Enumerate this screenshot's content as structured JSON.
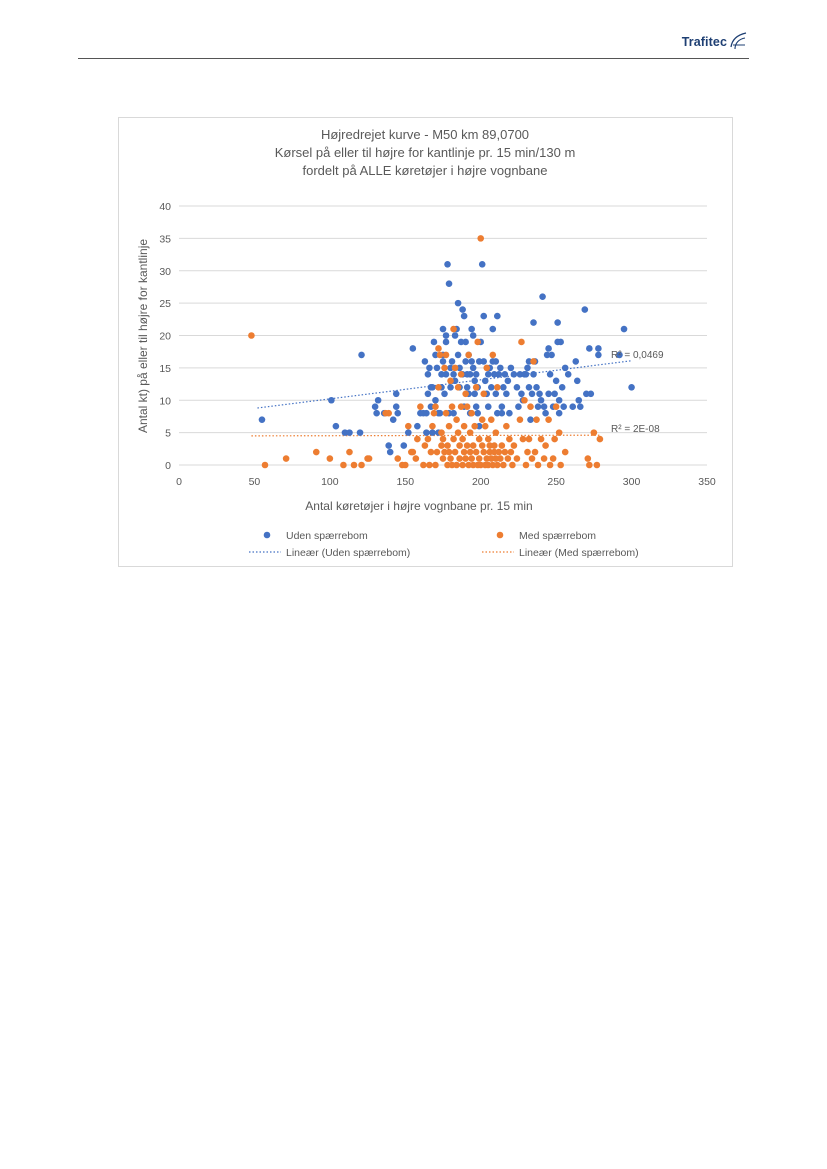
{
  "header": {
    "brand": "Trafitec",
    "brand_icon": "trafitec-logo-icon",
    "brand_color": "#1e3f73"
  },
  "chart_data": {
    "type": "scatter",
    "title": [
      "Højredrejet kurve - M50 km 89,0700",
      "Kørsel på eller til højre for kantlinje pr. 15 min/130 m",
      "fordelt på ALLE køretøjer i højre vognbane"
    ],
    "xlabel": "Antal køretøjer i højre vognbane pr. 15 min",
    "ylabel": "Antal kt) på eller til højre for kantlinje",
    "xlim": [
      0,
      350
    ],
    "ylim": [
      0,
      40
    ],
    "x_ticks": [
      "0",
      "50",
      "100",
      "150",
      "200",
      "250",
      "300",
      "350"
    ],
    "y_ticks": [
      "0",
      "5",
      "10",
      "15",
      "20",
      "25",
      "30",
      "35",
      "40"
    ],
    "grid": "horizontal",
    "legend_position": "bottom",
    "series": [
      {
        "name": "Uden spærrebom",
        "color": "#4472c4",
        "marker": "circle",
        "points": [
          [
            55,
            7
          ],
          [
            101,
            10
          ],
          [
            104,
            6
          ],
          [
            110,
            5
          ],
          [
            113,
            5
          ],
          [
            120,
            5
          ],
          [
            121,
            17
          ],
          [
            130,
            9
          ],
          [
            131,
            8
          ],
          [
            132,
            10
          ],
          [
            136,
            8
          ],
          [
            139,
            3
          ],
          [
            140,
            2
          ],
          [
            142,
            7
          ],
          [
            144,
            11
          ],
          [
            144,
            9
          ],
          [
            145,
            8
          ],
          [
            149,
            3
          ],
          [
            152,
            5
          ],
          [
            155,
            18
          ],
          [
            158,
            6
          ],
          [
            160,
            8
          ],
          [
            162,
            8
          ],
          [
            163,
            16
          ],
          [
            164,
            8
          ],
          [
            164,
            5
          ],
          [
            165,
            11
          ],
          [
            165,
            14
          ],
          [
            166,
            15
          ],
          [
            167,
            9
          ],
          [
            167,
            12
          ],
          [
            168,
            12
          ],
          [
            168,
            5
          ],
          [
            169,
            19
          ],
          [
            170,
            10
          ],
          [
            170,
            17
          ],
          [
            171,
            15
          ],
          [
            172,
            8
          ],
          [
            172,
            5
          ],
          [
            173,
            8
          ],
          [
            174,
            14
          ],
          [
            174,
            12
          ],
          [
            175,
            21
          ],
          [
            175,
            16
          ],
          [
            175,
            17
          ],
          [
            176,
            11
          ],
          [
            177,
            14
          ],
          [
            177,
            20
          ],
          [
            177,
            19
          ],
          [
            178,
            31
          ],
          [
            179,
            28
          ],
          [
            179,
            8
          ],
          [
            180,
            12
          ],
          [
            180,
            15
          ],
          [
            181,
            16
          ],
          [
            182,
            14
          ],
          [
            182,
            8
          ],
          [
            183,
            20
          ],
          [
            183,
            13
          ],
          [
            184,
            21
          ],
          [
            185,
            25
          ],
          [
            185,
            17
          ],
          [
            186,
            12
          ],
          [
            186,
            15
          ],
          [
            187,
            19
          ],
          [
            188,
            24
          ],
          [
            188,
            14
          ],
          [
            189,
            23
          ],
          [
            189,
            9
          ],
          [
            190,
            19
          ],
          [
            190,
            16
          ],
          [
            191,
            12
          ],
          [
            191,
            14
          ],
          [
            192,
            17
          ],
          [
            192,
            11
          ],
          [
            193,
            14
          ],
          [
            193,
            8
          ],
          [
            194,
            21
          ],
          [
            194,
            16
          ],
          [
            195,
            20
          ],
          [
            195,
            15
          ],
          [
            196,
            13
          ],
          [
            196,
            11
          ],
          [
            197,
            9
          ],
          [
            197,
            14
          ],
          [
            198,
            12
          ],
          [
            198,
            8
          ],
          [
            199,
            16
          ],
          [
            199,
            6
          ],
          [
            200,
            19
          ],
          [
            201,
            31
          ],
          [
            202,
            23
          ],
          [
            202,
            16
          ],
          [
            203,
            13
          ],
          [
            204,
            11
          ],
          [
            205,
            9
          ],
          [
            205,
            14
          ],
          [
            206,
            15
          ],
          [
            207,
            12
          ],
          [
            208,
            21
          ],
          [
            208,
            16
          ],
          [
            209,
            14
          ],
          [
            210,
            16
          ],
          [
            210,
            11
          ],
          [
            211,
            23
          ],
          [
            211,
            8
          ],
          [
            212,
            14
          ],
          [
            213,
            15
          ],
          [
            214,
            9
          ],
          [
            214,
            8
          ],
          [
            215,
            12
          ],
          [
            216,
            14
          ],
          [
            217,
            11
          ],
          [
            218,
            13
          ],
          [
            219,
            8
          ],
          [
            220,
            15
          ],
          [
            222,
            14
          ],
          [
            224,
            12
          ],
          [
            225,
            9
          ],
          [
            226,
            14
          ],
          [
            227,
            11
          ],
          [
            228,
            10
          ],
          [
            229,
            14
          ],
          [
            230,
            14
          ],
          [
            231,
            15
          ],
          [
            232,
            16
          ],
          [
            232,
            12
          ],
          [
            233,
            7
          ],
          [
            234,
            11
          ],
          [
            235,
            22
          ],
          [
            235,
            14
          ],
          [
            236,
            16
          ],
          [
            237,
            12
          ],
          [
            238,
            9
          ],
          [
            239,
            11
          ],
          [
            240,
            10
          ],
          [
            241,
            26
          ],
          [
            242,
            9
          ],
          [
            243,
            8
          ],
          [
            244,
            17
          ],
          [
            245,
            18
          ],
          [
            245,
            11
          ],
          [
            246,
            14
          ],
          [
            247,
            17
          ],
          [
            248,
            9
          ],
          [
            249,
            11
          ],
          [
            250,
            13
          ],
          [
            251,
            22
          ],
          [
            251,
            19
          ],
          [
            252,
            10
          ],
          [
            252,
            8
          ],
          [
            253,
            19
          ],
          [
            254,
            12
          ],
          [
            255,
            9
          ],
          [
            256,
            15
          ],
          [
            258,
            14
          ],
          [
            261,
            9
          ],
          [
            263,
            16
          ],
          [
            264,
            13
          ],
          [
            265,
            10
          ],
          [
            266,
            9
          ],
          [
            269,
            24
          ],
          [
            270,
            11
          ],
          [
            272,
            18
          ],
          [
            273,
            11
          ],
          [
            278,
            17
          ],
          [
            278,
            18
          ],
          [
            292,
            17
          ],
          [
            295,
            21
          ],
          [
            300,
            12
          ]
        ],
        "trendline": {
          "name": "Lineær (Uden spærrebom)",
          "style": "dotted",
          "x": [
            52,
            300
          ],
          "y": [
            8.8,
            16.1
          ],
          "r2_label": "R² = 0,0469"
        }
      },
      {
        "name": "Med spærrebom",
        "color": "#ed7d31",
        "marker": "circle",
        "points": [
          [
            48,
            20
          ],
          [
            57,
            0
          ],
          [
            71,
            1
          ],
          [
            91,
            2
          ],
          [
            100,
            1
          ],
          [
            109,
            0
          ],
          [
            113,
            2
          ],
          [
            116,
            0
          ],
          [
            121,
            0
          ],
          [
            125,
            1
          ],
          [
            126,
            1
          ],
          [
            137,
            8
          ],
          [
            139,
            8
          ],
          [
            145,
            1
          ],
          [
            148,
            0
          ],
          [
            150,
            0
          ],
          [
            152,
            6
          ],
          [
            154,
            2
          ],
          [
            155,
            2
          ],
          [
            157,
            1
          ],
          [
            158,
            4
          ],
          [
            160,
            9
          ],
          [
            162,
            0
          ],
          [
            163,
            3
          ],
          [
            165,
            4
          ],
          [
            166,
            0
          ],
          [
            167,
            2
          ],
          [
            168,
            6
          ],
          [
            169,
            8
          ],
          [
            170,
            9
          ],
          [
            170,
            0
          ],
          [
            171,
            2
          ],
          [
            172,
            12
          ],
          [
            172,
            18
          ],
          [
            173,
            17
          ],
          [
            174,
            5
          ],
          [
            174,
            3
          ],
          [
            175,
            1
          ],
          [
            175,
            4
          ],
          [
            176,
            2
          ],
          [
            176,
            15
          ],
          [
            177,
            8
          ],
          [
            177,
            17
          ],
          [
            178,
            3
          ],
          [
            178,
            0
          ],
          [
            179,
            6
          ],
          [
            179,
            2
          ],
          [
            180,
            13
          ],
          [
            180,
            1
          ],
          [
            181,
            9
          ],
          [
            181,
            0
          ],
          [
            182,
            21
          ],
          [
            182,
            4
          ],
          [
            183,
            15
          ],
          [
            183,
            2
          ],
          [
            184,
            7
          ],
          [
            184,
            0
          ],
          [
            185,
            12
          ],
          [
            185,
            5
          ],
          [
            186,
            3
          ],
          [
            186,
            1
          ],
          [
            187,
            9
          ],
          [
            187,
            14
          ],
          [
            188,
            0
          ],
          [
            188,
            4
          ],
          [
            189,
            2
          ],
          [
            189,
            6
          ],
          [
            190,
            1
          ],
          [
            190,
            11
          ],
          [
            191,
            3
          ],
          [
            191,
            9
          ],
          [
            192,
            0
          ],
          [
            192,
            17
          ],
          [
            193,
            5
          ],
          [
            193,
            2
          ],
          [
            194,
            8
          ],
          [
            194,
            1
          ],
          [
            195,
            3
          ],
          [
            195,
            0
          ],
          [
            196,
            6
          ],
          [
            197,
            12
          ],
          [
            197,
            2
          ],
          [
            198,
            0
          ],
          [
            198,
            19
          ],
          [
            199,
            4
          ],
          [
            199,
            1
          ],
          [
            200,
            35
          ],
          [
            200,
            0
          ],
          [
            201,
            7
          ],
          [
            201,
            3
          ],
          [
            202,
            2
          ],
          [
            202,
            11
          ],
          [
            203,
            0
          ],
          [
            203,
            6
          ],
          [
            204,
            1
          ],
          [
            204,
            15
          ],
          [
            205,
            4
          ],
          [
            205,
            0
          ],
          [
            206,
            3
          ],
          [
            206,
            2
          ],
          [
            207,
            1
          ],
          [
            207,
            7
          ],
          [
            208,
            17
          ],
          [
            208,
            0
          ],
          [
            209,
            3
          ],
          [
            209,
            2
          ],
          [
            210,
            1
          ],
          [
            210,
            5
          ],
          [
            211,
            12
          ],
          [
            211,
            0
          ],
          [
            212,
            2
          ],
          [
            213,
            1
          ],
          [
            214,
            3
          ],
          [
            215,
            0
          ],
          [
            216,
            2
          ],
          [
            217,
            6
          ],
          [
            218,
            1
          ],
          [
            219,
            4
          ],
          [
            220,
            2
          ],
          [
            221,
            0
          ],
          [
            222,
            3
          ],
          [
            224,
            1
          ],
          [
            226,
            7
          ],
          [
            227,
            19
          ],
          [
            228,
            4
          ],
          [
            229,
            10
          ],
          [
            230,
            0
          ],
          [
            231,
            2
          ],
          [
            232,
            4
          ],
          [
            233,
            9
          ],
          [
            234,
            1
          ],
          [
            235,
            16
          ],
          [
            236,
            2
          ],
          [
            237,
            7
          ],
          [
            238,
            0
          ],
          [
            240,
            4
          ],
          [
            242,
            1
          ],
          [
            243,
            3
          ],
          [
            245,
            7
          ],
          [
            246,
            0
          ],
          [
            248,
            1
          ],
          [
            249,
            4
          ],
          [
            250,
            9
          ],
          [
            252,
            5
          ],
          [
            253,
            0
          ],
          [
            256,
            2
          ],
          [
            271,
            1
          ],
          [
            272,
            0
          ],
          [
            275,
            5
          ],
          [
            277,
            0
          ],
          [
            279,
            4
          ]
        ],
        "trendline": {
          "name": "Lineær (Med spærrebom)",
          "style": "dotted",
          "x": [
            48,
            279
          ],
          "y": [
            4.5,
            4.6
          ],
          "r2_label": "R² = 2E-08"
        }
      }
    ]
  }
}
